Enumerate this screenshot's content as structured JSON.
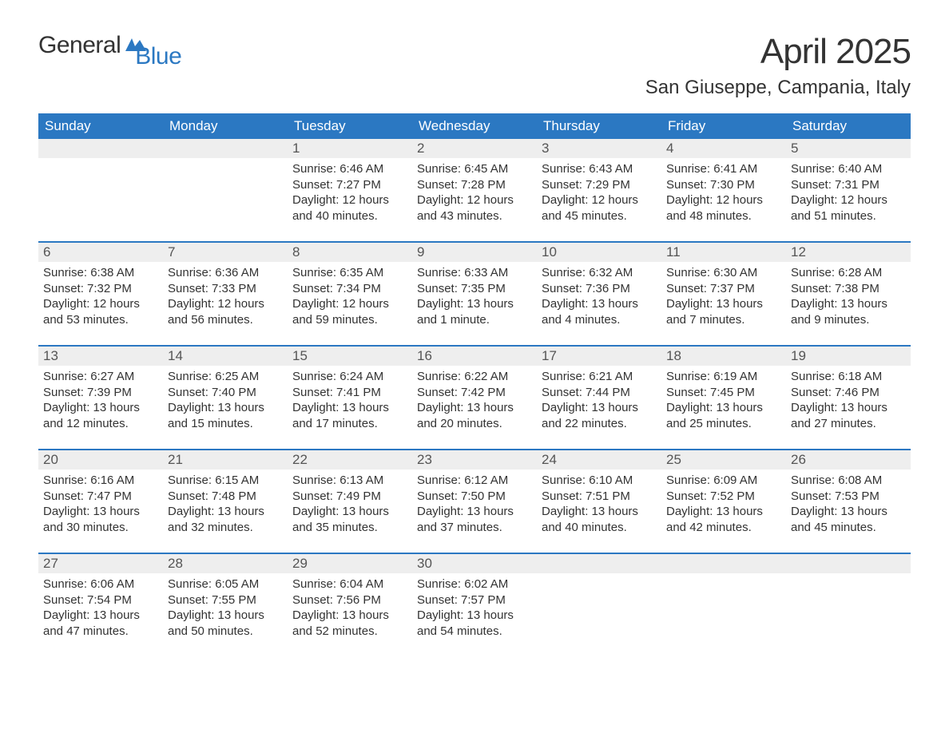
{
  "logo": {
    "text1": "General",
    "text2": "Blue"
  },
  "title": "April 2025",
  "location": "San Giuseppe, Campania, Italy",
  "colors": {
    "header_bg": "#2b78c2",
    "header_text": "#ffffff",
    "daynum_bg": "#eeeeee",
    "text": "#333333",
    "logo_blue": "#2b78c2"
  },
  "day_names": [
    "Sunday",
    "Monday",
    "Tuesday",
    "Wednesday",
    "Thursday",
    "Friday",
    "Saturday"
  ],
  "weeks": [
    [
      null,
      null,
      {
        "n": "1",
        "sunrise": "Sunrise: 6:46 AM",
        "sunset": "Sunset: 7:27 PM",
        "daylight": "Daylight: 12 hours and 40 minutes."
      },
      {
        "n": "2",
        "sunrise": "Sunrise: 6:45 AM",
        "sunset": "Sunset: 7:28 PM",
        "daylight": "Daylight: 12 hours and 43 minutes."
      },
      {
        "n": "3",
        "sunrise": "Sunrise: 6:43 AM",
        "sunset": "Sunset: 7:29 PM",
        "daylight": "Daylight: 12 hours and 45 minutes."
      },
      {
        "n": "4",
        "sunrise": "Sunrise: 6:41 AM",
        "sunset": "Sunset: 7:30 PM",
        "daylight": "Daylight: 12 hours and 48 minutes."
      },
      {
        "n": "5",
        "sunrise": "Sunrise: 6:40 AM",
        "sunset": "Sunset: 7:31 PM",
        "daylight": "Daylight: 12 hours and 51 minutes."
      }
    ],
    [
      {
        "n": "6",
        "sunrise": "Sunrise: 6:38 AM",
        "sunset": "Sunset: 7:32 PM",
        "daylight": "Daylight: 12 hours and 53 minutes."
      },
      {
        "n": "7",
        "sunrise": "Sunrise: 6:36 AM",
        "sunset": "Sunset: 7:33 PM",
        "daylight": "Daylight: 12 hours and 56 minutes."
      },
      {
        "n": "8",
        "sunrise": "Sunrise: 6:35 AM",
        "sunset": "Sunset: 7:34 PM",
        "daylight": "Daylight: 12 hours and 59 minutes."
      },
      {
        "n": "9",
        "sunrise": "Sunrise: 6:33 AM",
        "sunset": "Sunset: 7:35 PM",
        "daylight": "Daylight: 13 hours and 1 minute."
      },
      {
        "n": "10",
        "sunrise": "Sunrise: 6:32 AM",
        "sunset": "Sunset: 7:36 PM",
        "daylight": "Daylight: 13 hours and 4 minutes."
      },
      {
        "n": "11",
        "sunrise": "Sunrise: 6:30 AM",
        "sunset": "Sunset: 7:37 PM",
        "daylight": "Daylight: 13 hours and 7 minutes."
      },
      {
        "n": "12",
        "sunrise": "Sunrise: 6:28 AM",
        "sunset": "Sunset: 7:38 PM",
        "daylight": "Daylight: 13 hours and 9 minutes."
      }
    ],
    [
      {
        "n": "13",
        "sunrise": "Sunrise: 6:27 AM",
        "sunset": "Sunset: 7:39 PM",
        "daylight": "Daylight: 13 hours and 12 minutes."
      },
      {
        "n": "14",
        "sunrise": "Sunrise: 6:25 AM",
        "sunset": "Sunset: 7:40 PM",
        "daylight": "Daylight: 13 hours and 15 minutes."
      },
      {
        "n": "15",
        "sunrise": "Sunrise: 6:24 AM",
        "sunset": "Sunset: 7:41 PM",
        "daylight": "Daylight: 13 hours and 17 minutes."
      },
      {
        "n": "16",
        "sunrise": "Sunrise: 6:22 AM",
        "sunset": "Sunset: 7:42 PM",
        "daylight": "Daylight: 13 hours and 20 minutes."
      },
      {
        "n": "17",
        "sunrise": "Sunrise: 6:21 AM",
        "sunset": "Sunset: 7:44 PM",
        "daylight": "Daylight: 13 hours and 22 minutes."
      },
      {
        "n": "18",
        "sunrise": "Sunrise: 6:19 AM",
        "sunset": "Sunset: 7:45 PM",
        "daylight": "Daylight: 13 hours and 25 minutes."
      },
      {
        "n": "19",
        "sunrise": "Sunrise: 6:18 AM",
        "sunset": "Sunset: 7:46 PM",
        "daylight": "Daylight: 13 hours and 27 minutes."
      }
    ],
    [
      {
        "n": "20",
        "sunrise": "Sunrise: 6:16 AM",
        "sunset": "Sunset: 7:47 PM",
        "daylight": "Daylight: 13 hours and 30 minutes."
      },
      {
        "n": "21",
        "sunrise": "Sunrise: 6:15 AM",
        "sunset": "Sunset: 7:48 PM",
        "daylight": "Daylight: 13 hours and 32 minutes."
      },
      {
        "n": "22",
        "sunrise": "Sunrise: 6:13 AM",
        "sunset": "Sunset: 7:49 PM",
        "daylight": "Daylight: 13 hours and 35 minutes."
      },
      {
        "n": "23",
        "sunrise": "Sunrise: 6:12 AM",
        "sunset": "Sunset: 7:50 PM",
        "daylight": "Daylight: 13 hours and 37 minutes."
      },
      {
        "n": "24",
        "sunrise": "Sunrise: 6:10 AM",
        "sunset": "Sunset: 7:51 PM",
        "daylight": "Daylight: 13 hours and 40 minutes."
      },
      {
        "n": "25",
        "sunrise": "Sunrise: 6:09 AM",
        "sunset": "Sunset: 7:52 PM",
        "daylight": "Daylight: 13 hours and 42 minutes."
      },
      {
        "n": "26",
        "sunrise": "Sunrise: 6:08 AM",
        "sunset": "Sunset: 7:53 PM",
        "daylight": "Daylight: 13 hours and 45 minutes."
      }
    ],
    [
      {
        "n": "27",
        "sunrise": "Sunrise: 6:06 AM",
        "sunset": "Sunset: 7:54 PM",
        "daylight": "Daylight: 13 hours and 47 minutes."
      },
      {
        "n": "28",
        "sunrise": "Sunrise: 6:05 AM",
        "sunset": "Sunset: 7:55 PM",
        "daylight": "Daylight: 13 hours and 50 minutes."
      },
      {
        "n": "29",
        "sunrise": "Sunrise: 6:04 AM",
        "sunset": "Sunset: 7:56 PM",
        "daylight": "Daylight: 13 hours and 52 minutes."
      },
      {
        "n": "30",
        "sunrise": "Sunrise: 6:02 AM",
        "sunset": "Sunset: 7:57 PM",
        "daylight": "Daylight: 13 hours and 54 minutes."
      },
      null,
      null,
      null
    ]
  ]
}
